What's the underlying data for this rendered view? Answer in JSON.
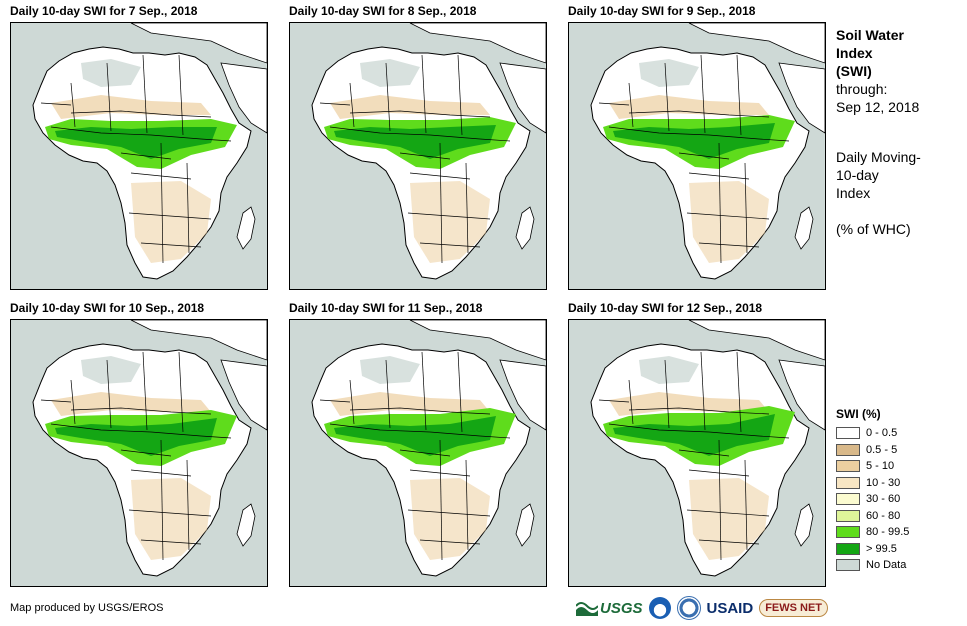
{
  "panels": [
    {
      "title": "Daily 10-day SWI for 7 Sep., 2018"
    },
    {
      "title": "Daily 10-day SWI for 8 Sep., 2018"
    },
    {
      "title": "Daily 10-day SWI for 9 Sep., 2018"
    },
    {
      "title": "Daily 10-day SWI for 10 Sep., 2018"
    },
    {
      "title": "Daily 10-day SWI for 11 Sep., 2018"
    },
    {
      "title": "Daily 10-day SWI for 12 Sep., 2018"
    }
  ],
  "side": {
    "title_line1": "Soil Water",
    "title_line2": "Index",
    "title_line3": "(SWI)",
    "through": "through:",
    "date": "Sep 12, 2018",
    "desc_line1": "Daily Moving-",
    "desc_line2": "10-day",
    "desc_line3": "Index",
    "unit": "(% of WHC)"
  },
  "legend": {
    "title": "SWI (%)",
    "items": [
      {
        "label": "0 - 0.5",
        "color": "#ffffff"
      },
      {
        "label": "0.5 - 5",
        "color": "#d9b98a"
      },
      {
        "label": "5 - 10",
        "color": "#eccfa0"
      },
      {
        "label": "10 - 30",
        "color": "#f8e6c4"
      },
      {
        "label": "30 - 60",
        "color": "#fbfbd0"
      },
      {
        "label": "60 - 80",
        "color": "#dff59a"
      },
      {
        "label": "80 - 99.5",
        "color": "#5fdc1c"
      },
      {
        "label": "> 99.5",
        "color": "#14a614"
      },
      {
        "label": "No Data",
        "color": "#ced9d6"
      }
    ]
  },
  "footer": {
    "credit": "Map produced by USGS/EROS",
    "logos": [
      "USGS",
      "NOAA",
      "USAID",
      "FEWS NET"
    ]
  },
  "colors": {
    "sea": "#ced9d6",
    "land": "#ffffff",
    "wet": "#14a614",
    "moist": "#5fdc1c",
    "dry": "#eccfa0",
    "border": "#000000"
  }
}
